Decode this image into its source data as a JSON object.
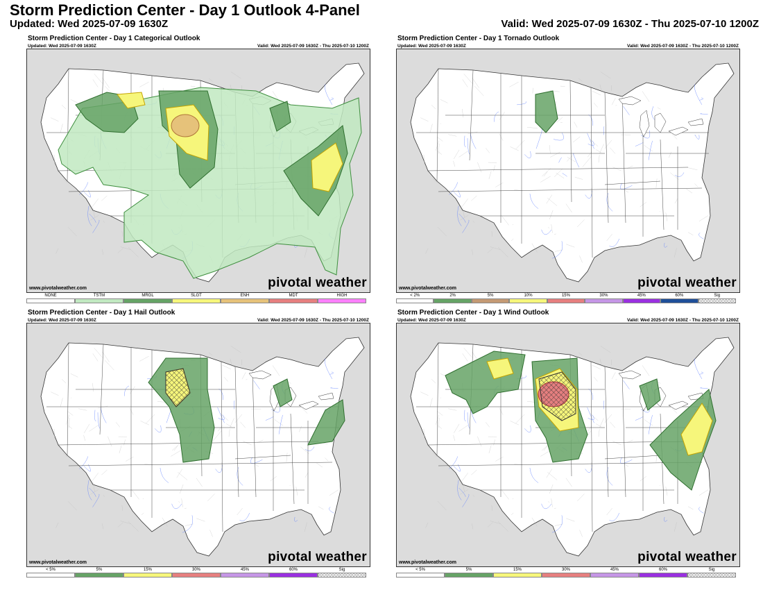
{
  "header": {
    "title": "Storm Prediction Center - Day 1 Outlook 4-Panel",
    "updated": "Updated: Wed 2025-07-09 1630Z",
    "valid": "Valid: Wed 2025-07-09 1630Z - Thu 2025-07-10 1200Z"
  },
  "common": {
    "panel_updated": "Updated: Wed 2025-07-09 1630Z",
    "panel_valid": "Valid: Wed 2025-07-09 1630Z - Thu 2025-07-10 1200Z",
    "website": "www.pivotalweather.com",
    "brand": "pivotal weather",
    "brand_icon": "gear-icon"
  },
  "panels": [
    {
      "title": "Storm Prediction Center - Day 1 Categorical Outlook",
      "legend": [
        {
          "label": "NONE",
          "color": "#ffffff"
        },
        {
          "label": "TSTM",
          "color": "#c1e9c1"
        },
        {
          "label": "MRGL",
          "color": "#66a366"
        },
        {
          "label": "SLGT",
          "color": "#f6f67b"
        },
        {
          "label": "ENH",
          "color": "#e6c27a"
        },
        {
          "label": "MDT",
          "color": "#e67f7f"
        },
        {
          "label": "HIGH",
          "color": "#ff80ff"
        }
      ]
    },
    {
      "title": "Storm Prediction Center - Day 1 Tornado Outlook",
      "legend": [
        {
          "label": "< 2%",
          "color": "#ffffff"
        },
        {
          "label": "2%",
          "color": "#66a366"
        },
        {
          "label": "5%",
          "color": "#c49a74"
        },
        {
          "label": "10%",
          "color": "#f6f67b"
        },
        {
          "label": "15%",
          "color": "#e67f7f"
        },
        {
          "label": "30%",
          "color": "#c596e6"
        },
        {
          "label": "45%",
          "color": "#9a30e0"
        },
        {
          "label": "60%",
          "color": "#1f4f99"
        },
        {
          "label": "Sig",
          "color": "hatch"
        }
      ]
    },
    {
      "title": "Storm Prediction Center - Day 1 Hail Outlook",
      "legend": [
        {
          "label": "< 5%",
          "color": "#ffffff"
        },
        {
          "label": "5%",
          "color": "#66a366"
        },
        {
          "label": "15%",
          "color": "#f6f67b"
        },
        {
          "label": "30%",
          "color": "#e67f7f"
        },
        {
          "label": "45%",
          "color": "#c596e6"
        },
        {
          "label": "60%",
          "color": "#9a30e0"
        },
        {
          "label": "Sig",
          "color": "hatch"
        }
      ]
    },
    {
      "title": "Storm Prediction Center - Day 1 Wind Outlook",
      "legend": [
        {
          "label": "< 5%",
          "color": "#ffffff"
        },
        {
          "label": "5%",
          "color": "#66a366"
        },
        {
          "label": "15%",
          "color": "#f6f67b"
        },
        {
          "label": "30%",
          "color": "#e67f7f"
        },
        {
          "label": "45%",
          "color": "#c596e6"
        },
        {
          "label": "60%",
          "color": "#9a30e0"
        },
        {
          "label": "Sig",
          "color": "hatch"
        }
      ]
    }
  ]
}
